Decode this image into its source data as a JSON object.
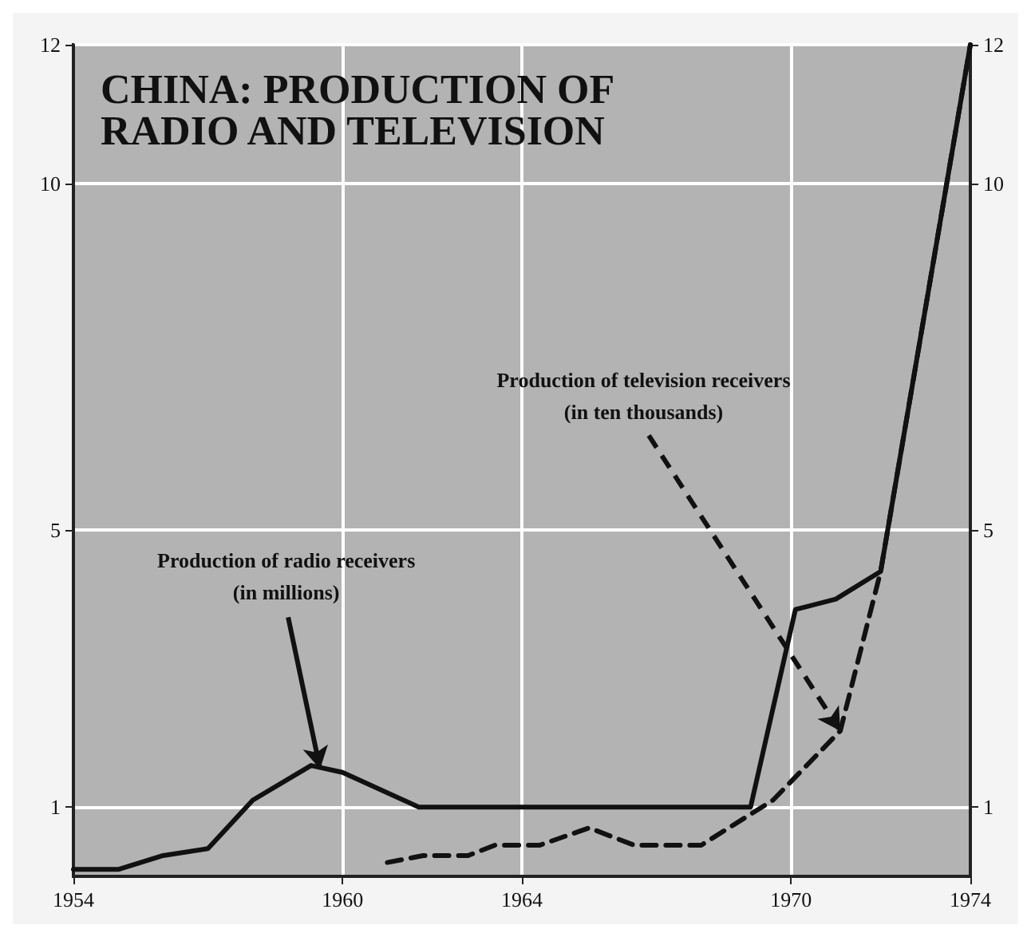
{
  "chart_data": {
    "type": "line",
    "title": "CHINA: PRODUCTION OF\nRADIO AND TELEVISION",
    "annotations": [
      {
        "text": "Production of television receivers\n(in ten thousands)",
        "x": 1971.1,
        "y": 2.1
      },
      {
        "text": "Production of radio receivers\n(in millions)",
        "x": 1959.5,
        "y": 1.55
      }
    ],
    "series": [
      {
        "color": "#111111",
        "line_style": "solid",
        "x": [
          1954,
          1955,
          1956,
          1957,
          1958,
          1959.3,
          1960,
          1961.7,
          1969.1,
          1970.1,
          1971,
          1972,
          1974
        ],
        "values": [
          0.1,
          0.1,
          0.3,
          0.4,
          1.1,
          1.6,
          1.5,
          1.0,
          1.0,
          3.85,
          4.0,
          4.4,
          12
        ]
      },
      {
        "color": "#111111",
        "line_style": "dashed",
        "x": [
          1961,
          1961.8,
          1962.8,
          1963.4,
          1964.4,
          1965.5,
          1966.5,
          1968,
          1969.6,
          1971.1,
          1972,
          1974
        ],
        "values": [
          0.2,
          0.3,
          0.3,
          0.45,
          0.45,
          0.7,
          0.45,
          0.45,
          1.1,
          2.1,
          4.4,
          12
        ]
      }
    ],
    "marker": "none",
    "grid": true,
    "xlim": [
      1954,
      1974
    ],
    "xticks": [
      1954,
      1960,
      1964,
      1970,
      1974
    ],
    "ylim": [
      0,
      12
    ],
    "yticks": [
      1,
      5,
      10,
      12
    ],
    "y2lim": [
      0,
      12
    ],
    "y2ticks": [
      1,
      5,
      10,
      12
    ]
  }
}
